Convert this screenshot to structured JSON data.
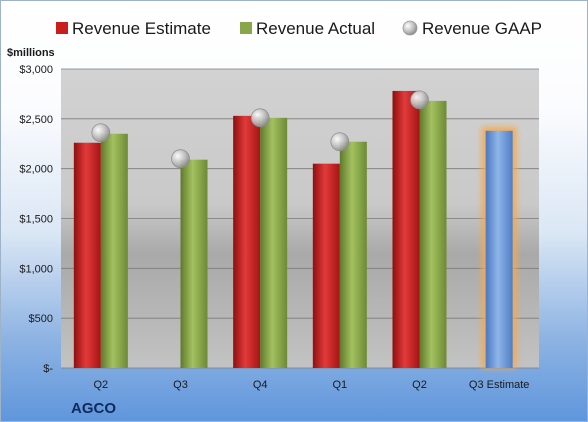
{
  "chart_data": {
    "type": "bar",
    "categories": [
      "Q2",
      "Q3",
      "Q4",
      "Q1",
      "Q2",
      "Q3 Estimate"
    ],
    "series": [
      {
        "name": "Revenue Estimate",
        "color": "#c81e1e",
        "values": [
          2260,
          null,
          2530,
          2050,
          2780,
          null
        ]
      },
      {
        "name": "Revenue Actual",
        "color": "#8aa64a",
        "values": [
          2350,
          2090,
          2510,
          2270,
          2680,
          null
        ]
      },
      {
        "name": "Revenue GAAP",
        "color": "#c8c8c8",
        "marker": "circle",
        "values": [
          2360,
          2100,
          2510,
          2270,
          2690,
          null
        ]
      },
      {
        "name": "",
        "color": "#6f9bd6",
        "highlight": "#f6a94a",
        "values": [
          null,
          null,
          null,
          null,
          null,
          2380
        ]
      }
    ],
    "ylabel": "$millions",
    "ylim": [
      0,
      3000
    ],
    "yticks": [
      {
        "value": 0,
        "label": "$-"
      },
      {
        "value": 500,
        "label": "$500"
      },
      {
        "value": 1000,
        "label": "$1,000"
      },
      {
        "value": 1500,
        "label": "$1,500"
      },
      {
        "value": 2000,
        "label": "$2,000"
      },
      {
        "value": 2500,
        "label": "$2,500"
      },
      {
        "value": 3000,
        "label": "$3,000"
      }
    ],
    "grid": true,
    "legend_position": "top"
  },
  "company": "AGCO"
}
